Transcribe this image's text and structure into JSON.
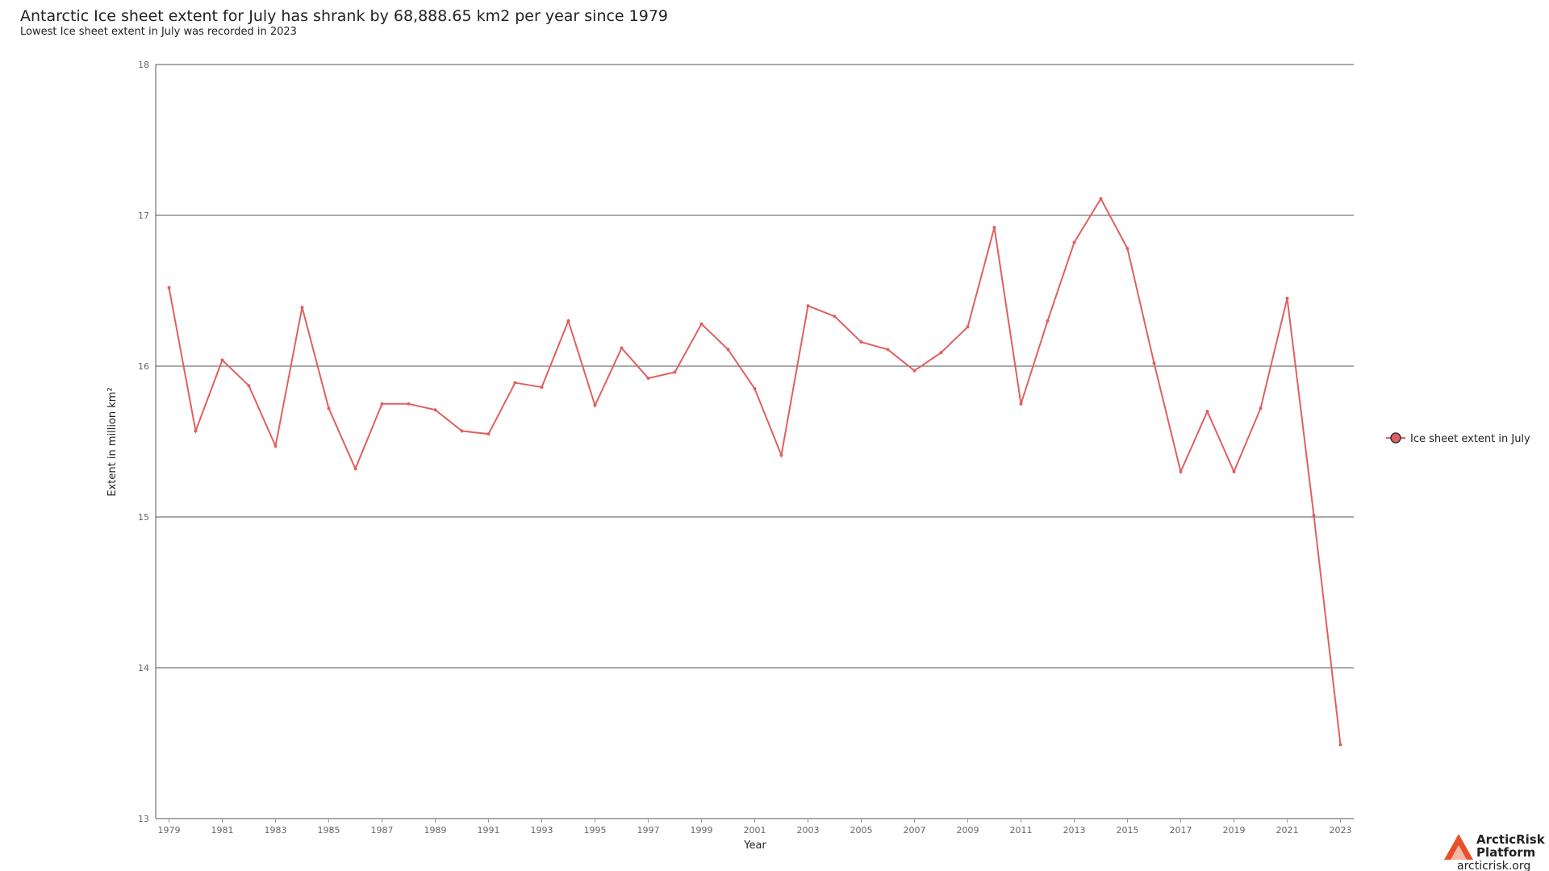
{
  "chart_data": {
    "type": "line",
    "title": "Antarctic Ice sheet extent for July has shrank by 68,888.65 km2 per year since 1979",
    "subtitle": "Lowest Ice sheet extent in July was recorded in 2023",
    "x_label": "Year",
    "y_label": "Extent in million km²",
    "x": [
      1979,
      1980,
      1981,
      1982,
      1983,
      1984,
      1985,
      1986,
      1987,
      1988,
      1989,
      1990,
      1991,
      1992,
      1993,
      1994,
      1995,
      1996,
      1997,
      1998,
      1999,
      2000,
      2001,
      2002,
      2003,
      2004,
      2005,
      2006,
      2007,
      2008,
      2009,
      2010,
      2011,
      2012,
      2013,
      2014,
      2015,
      2016,
      2017,
      2018,
      2019,
      2020,
      2021,
      2022,
      2023
    ],
    "series": [
      {
        "name": "Ice sheet extent in July",
        "color": "#e06060",
        "values": [
          16.52,
          15.57,
          16.04,
          15.87,
          15.47,
          16.39,
          15.72,
          15.32,
          15.75,
          15.75,
          15.71,
          15.57,
          15.55,
          15.89,
          15.86,
          16.3,
          15.74,
          16.12,
          15.92,
          15.96,
          16.28,
          16.11,
          15.85,
          15.41,
          16.4,
          16.33,
          16.16,
          16.11,
          15.97,
          16.09,
          16.26,
          16.92,
          15.75,
          16.3,
          16.82,
          17.11,
          16.78,
          16.02,
          15.3,
          15.7,
          15.3,
          15.72,
          16.45,
          15.01,
          13.49
        ]
      }
    ],
    "xlim": [
      1978.5,
      2023.5
    ],
    "xticks": [
      1979,
      1981,
      1983,
      1985,
      1987,
      1989,
      1991,
      1993,
      1995,
      1997,
      1999,
      2001,
      2003,
      2005,
      2007,
      2009,
      2011,
      2013,
      2015,
      2017,
      2019,
      2021,
      2023
    ],
    "ylim": [
      13,
      18
    ],
    "yticks": [
      13,
      14,
      15,
      16,
      17,
      18
    ],
    "grid": true,
    "legend": "right"
  },
  "logo": {
    "name": "ArcticRisk",
    "name2": "Platform",
    "url": "arcticrisk.org"
  }
}
